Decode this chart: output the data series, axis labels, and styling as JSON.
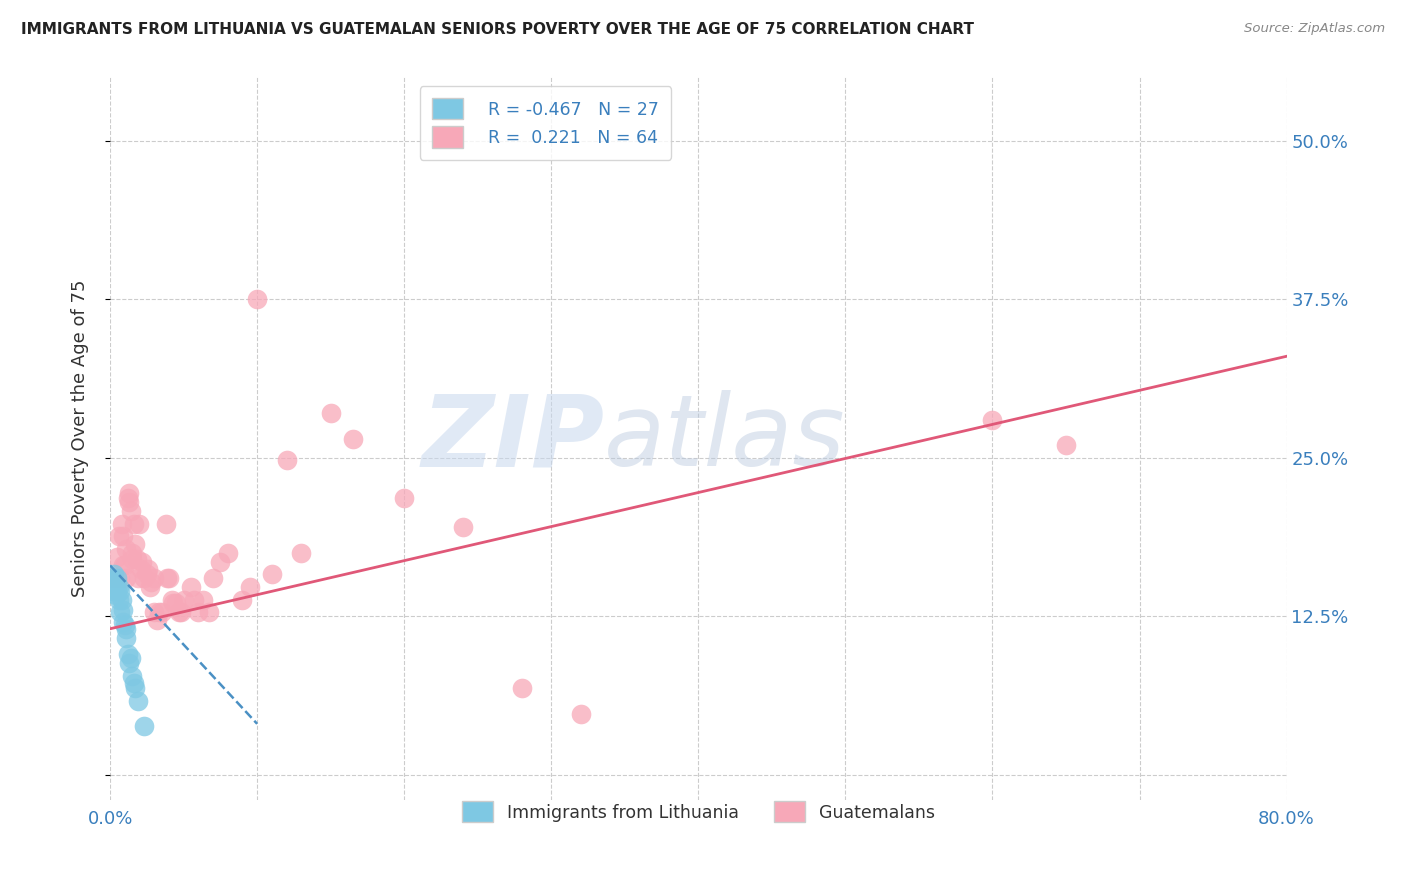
{
  "title": "IMMIGRANTS FROM LITHUANIA VS GUATEMALAN SENIORS POVERTY OVER THE AGE OF 75 CORRELATION CHART",
  "source": "Source: ZipAtlas.com",
  "ylabel": "Seniors Poverty Over the Age of 75",
  "xlim": [
    0,
    0.8
  ],
  "ylim": [
    -0.02,
    0.55
  ],
  "ytick_positions": [
    0.0,
    0.125,
    0.25,
    0.375,
    0.5
  ],
  "ytick_labels": [
    "",
    "12.5%",
    "25.0%",
    "37.5%",
    "50.0%"
  ],
  "color_blue": "#7ec8e3",
  "color_pink": "#f7a8b8",
  "color_blue_line": "#4a90c4",
  "color_pink_line": "#e05878",
  "watermark_zip": "ZIP",
  "watermark_atlas": "atlas",
  "background_color": "#ffffff",
  "pink_line_x": [
    0.0,
    0.8
  ],
  "pink_line_y": [
    0.115,
    0.33
  ],
  "blue_line_x": [
    0.0,
    0.1
  ],
  "blue_line_y": [
    0.165,
    0.04
  ],
  "blue_points": [
    [
      0.001,
      0.155
    ],
    [
      0.002,
      0.152
    ],
    [
      0.002,
      0.145
    ],
    [
      0.003,
      0.158
    ],
    [
      0.003,
      0.148
    ],
    [
      0.004,
      0.15
    ],
    [
      0.004,
      0.142
    ],
    [
      0.005,
      0.155
    ],
    [
      0.005,
      0.145
    ],
    [
      0.006,
      0.148
    ],
    [
      0.006,
      0.138
    ],
    [
      0.007,
      0.128
    ],
    [
      0.007,
      0.145
    ],
    [
      0.008,
      0.138
    ],
    [
      0.009,
      0.13
    ],
    [
      0.009,
      0.12
    ],
    [
      0.01,
      0.118
    ],
    [
      0.011,
      0.108
    ],
    [
      0.011,
      0.115
    ],
    [
      0.012,
      0.095
    ],
    [
      0.013,
      0.088
    ],
    [
      0.014,
      0.092
    ],
    [
      0.015,
      0.078
    ],
    [
      0.016,
      0.072
    ],
    [
      0.017,
      0.068
    ],
    [
      0.019,
      0.058
    ],
    [
      0.023,
      0.038
    ]
  ],
  "pink_points": [
    [
      0.003,
      0.155
    ],
    [
      0.005,
      0.172
    ],
    [
      0.006,
      0.188
    ],
    [
      0.007,
      0.155
    ],
    [
      0.008,
      0.198
    ],
    [
      0.009,
      0.165
    ],
    [
      0.009,
      0.188
    ],
    [
      0.01,
      0.165
    ],
    [
      0.011,
      0.178
    ],
    [
      0.011,
      0.155
    ],
    [
      0.012,
      0.218
    ],
    [
      0.013,
      0.215
    ],
    [
      0.013,
      0.222
    ],
    [
      0.014,
      0.208
    ],
    [
      0.015,
      0.175
    ],
    [
      0.015,
      0.17
    ],
    [
      0.016,
      0.198
    ],
    [
      0.017,
      0.182
    ],
    [
      0.018,
      0.17
    ],
    [
      0.019,
      0.155
    ],
    [
      0.02,
      0.198
    ],
    [
      0.021,
      0.162
    ],
    [
      0.022,
      0.168
    ],
    [
      0.023,
      0.155
    ],
    [
      0.025,
      0.158
    ],
    [
      0.026,
      0.162
    ],
    [
      0.027,
      0.148
    ],
    [
      0.028,
      0.152
    ],
    [
      0.03,
      0.155
    ],
    [
      0.03,
      0.128
    ],
    [
      0.032,
      0.122
    ],
    [
      0.033,
      0.128
    ],
    [
      0.035,
      0.128
    ],
    [
      0.038,
      0.198
    ],
    [
      0.039,
      0.155
    ],
    [
      0.04,
      0.155
    ],
    [
      0.042,
      0.138
    ],
    [
      0.043,
      0.135
    ],
    [
      0.045,
      0.135
    ],
    [
      0.047,
      0.128
    ],
    [
      0.048,
      0.128
    ],
    [
      0.05,
      0.138
    ],
    [
      0.055,
      0.148
    ],
    [
      0.057,
      0.138
    ],
    [
      0.06,
      0.128
    ],
    [
      0.063,
      0.138
    ],
    [
      0.067,
      0.128
    ],
    [
      0.07,
      0.155
    ],
    [
      0.075,
      0.168
    ],
    [
      0.08,
      0.175
    ],
    [
      0.09,
      0.138
    ],
    [
      0.095,
      0.148
    ],
    [
      0.1,
      0.375
    ],
    [
      0.11,
      0.158
    ],
    [
      0.12,
      0.248
    ],
    [
      0.13,
      0.175
    ],
    [
      0.15,
      0.285
    ],
    [
      0.165,
      0.265
    ],
    [
      0.2,
      0.218
    ],
    [
      0.24,
      0.195
    ],
    [
      0.28,
      0.068
    ],
    [
      0.32,
      0.048
    ],
    [
      0.6,
      0.28
    ],
    [
      0.65,
      0.26
    ]
  ]
}
